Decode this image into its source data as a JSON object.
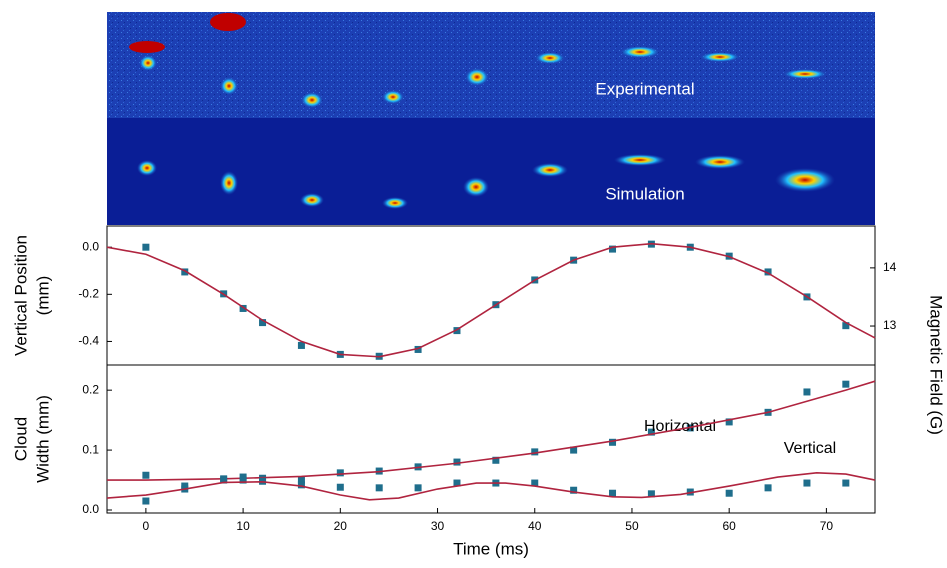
{
  "images": {
    "experimental": "Experimental",
    "simulation": "Simulation"
  },
  "chart_data": [
    {
      "type": "scatter",
      "ylabel": [
        "Vertical Position",
        "(mm)"
      ],
      "y2label": "Magnetic Field (G)",
      "xlim": [
        -4,
        75
      ],
      "ylim": [
        -0.5,
        0.09
      ],
      "yticks": [
        {
          "value": 0,
          "label": "0.0"
        },
        -0.2,
        -0.4
      ],
      "y2lim": [
        12.33,
        14.72
      ],
      "y2ticks": [
        13,
        14
      ],
      "series": [
        {
          "style": "points",
          "color": "#1f6e8c",
          "x": [
            0,
            4,
            8,
            10,
            12,
            16,
            20,
            24,
            28,
            32,
            36,
            40,
            44,
            48,
            52,
            56,
            60,
            64,
            68,
            72
          ],
          "values": [
            0.0,
            -0.105,
            -0.198,
            -0.26,
            -0.32,
            -0.417,
            -0.455,
            -0.463,
            -0.434,
            -0.354,
            -0.244,
            -0.139,
            -0.055,
            -0.008,
            0.013,
            0.0,
            -0.038,
            -0.105,
            -0.211,
            -0.333
          ]
        },
        {
          "style": "line",
          "color": "#b0243f",
          "x": [
            -4,
            0,
            4,
            8,
            12,
            16,
            20,
            24,
            28,
            32,
            36,
            40,
            44,
            48,
            52,
            56,
            60,
            64,
            68,
            72,
            75
          ],
          "values": [
            0.0,
            -0.03,
            -0.1,
            -0.2,
            -0.31,
            -0.4,
            -0.455,
            -0.465,
            -0.43,
            -0.35,
            -0.245,
            -0.14,
            -0.055,
            0.0,
            0.015,
            0.0,
            -0.04,
            -0.11,
            -0.21,
            -0.32,
            -0.385
          ]
        }
      ]
    },
    {
      "type": "scatter",
      "ylabel": [
        "Cloud",
        "Width (mm)"
      ],
      "xlabel": "Time (ms)",
      "xlim": [
        -4,
        75
      ],
      "ylim": [
        -0.005,
        0.242
      ],
      "xticks": [
        0,
        10,
        20,
        30,
        40,
        50,
        60,
        70
      ],
      "yticks": [
        {
          "value": 0,
          "label": "0.0"
        },
        0.1,
        0.2
      ],
      "series": [
        {
          "name": "Horizontal",
          "style": "points",
          "color": "#1f6e8c",
          "x": [
            0,
            4,
            8,
            10,
            12,
            16,
            20,
            24,
            28,
            32,
            36,
            40,
            44,
            48,
            52,
            56,
            60,
            64,
            68,
            72
          ],
          "values": [
            0.058,
            0.04,
            0.052,
            0.055,
            0.053,
            0.05,
            0.062,
            0.065,
            0.072,
            0.08,
            0.083,
            0.097,
            0.1,
            0.113,
            0.13,
            0.137,
            0.147,
            0.163,
            0.197,
            0.21
          ]
        },
        {
          "style": "line",
          "color": "#b0243f",
          "x": [
            -4,
            0,
            8,
            16,
            24,
            32,
            40,
            48,
            56,
            64,
            72,
            75
          ],
          "values": [
            0.05,
            0.05,
            0.052,
            0.056,
            0.064,
            0.078,
            0.095,
            0.115,
            0.138,
            0.163,
            0.2,
            0.215
          ]
        },
        {
          "name": "Vertical",
          "style": "points",
          "color": "#1f6e8c",
          "x": [
            0,
            4,
            8,
            10,
            12,
            16,
            20,
            24,
            28,
            32,
            36,
            40,
            44,
            48,
            52,
            56,
            60,
            64,
            68,
            72
          ],
          "values": [
            0.015,
            0.035,
            0.05,
            0.05,
            0.048,
            0.042,
            0.038,
            0.037,
            0.037,
            0.045,
            0.045,
            0.045,
            0.033,
            0.028,
            0.027,
            0.03,
            0.028,
            0.037,
            0.045,
            0.045
          ]
        },
        {
          "style": "line",
          "color": "#b0243f",
          "x": [
            -4,
            0,
            4,
            8,
            12,
            16,
            20,
            23,
            26,
            30,
            34,
            37,
            40,
            44,
            48,
            51,
            55,
            60,
            65,
            69,
            72,
            75
          ],
          "values": [
            0.02,
            0.025,
            0.035,
            0.046,
            0.047,
            0.04,
            0.025,
            0.017,
            0.02,
            0.035,
            0.045,
            0.045,
            0.04,
            0.03,
            0.022,
            0.021,
            0.026,
            0.04,
            0.055,
            0.062,
            0.06,
            0.05
          ]
        }
      ]
    }
  ]
}
